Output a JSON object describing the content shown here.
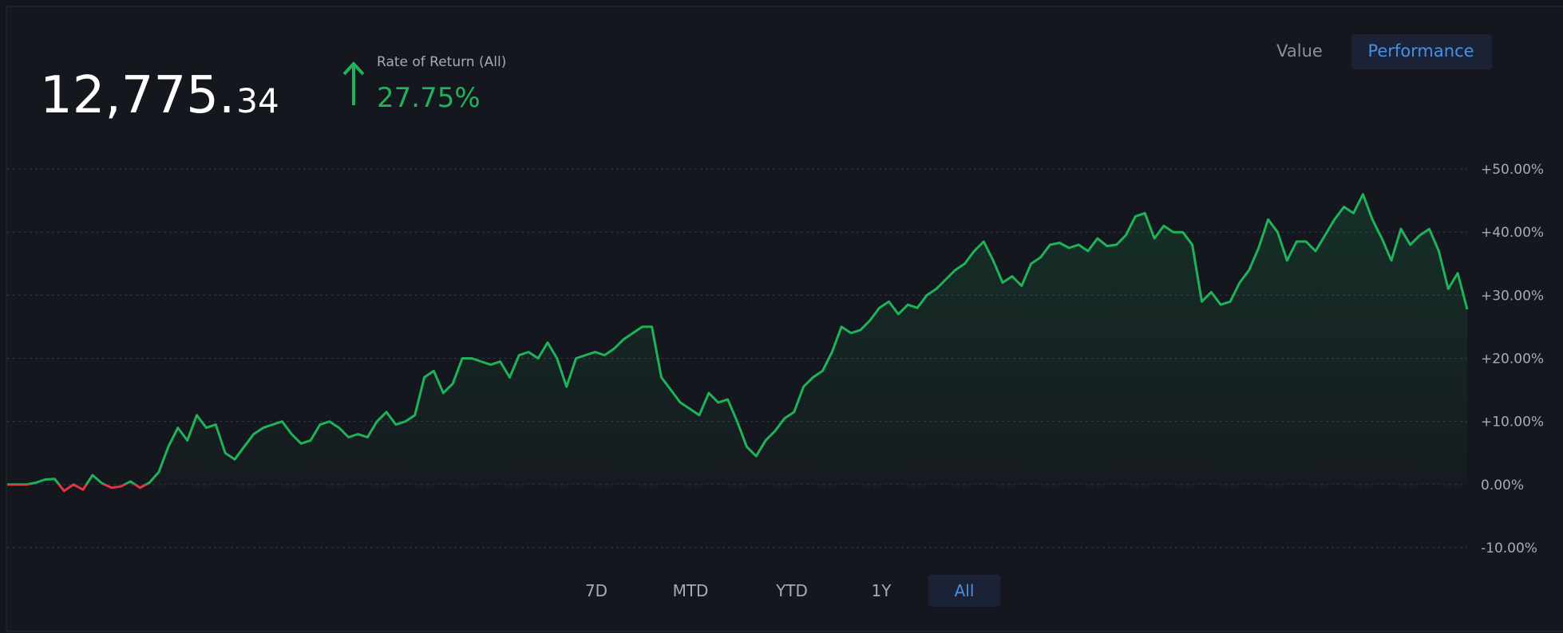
{
  "header": {
    "balance_main": "12,775.",
    "balance_decimals": "34",
    "return_label": "Rate of Return (All)",
    "return_value": "27.75%"
  },
  "view_tabs": [
    "Value",
    "Performance"
  ],
  "active_view": 1,
  "ranges": [
    "7D",
    "MTD",
    "YTD",
    "1Y",
    "All"
  ],
  "active_range": 4,
  "chart_data": {
    "type": "line",
    "color": "#1fb25a",
    "negative_color": "#e0383e",
    "grid": true,
    "area": true,
    "ylim": [
      -10,
      50
    ],
    "yticks": [
      {
        "value": -10,
        "label": "-10.00%"
      },
      {
        "value": 0,
        "label": "0.00%"
      },
      {
        "value": 10,
        "label": "+10.00%"
      },
      {
        "value": 20,
        "label": "+20.00%"
      },
      {
        "value": 30,
        "label": "+30.00%"
      },
      {
        "value": 40,
        "label": "+40.00%"
      },
      {
        "value": 50,
        "label": "+50.00%"
      }
    ],
    "values": [
      0,
      0,
      0,
      0.3,
      0.8,
      0.9,
      -1,
      0,
      -0.8,
      1.5,
      0.2,
      -0.5,
      -0.3,
      0.5,
      -0.5,
      0.3,
      2,
      6,
      9,
      7,
      11,
      9,
      9.5,
      5,
      4,
      6,
      8,
      9,
      9.5,
      10,
      8,
      6.5,
      7,
      9.5,
      10,
      9,
      7.5,
      8,
      7.5,
      10,
      11.5,
      9.5,
      10,
      11,
      17,
      18,
      14.5,
      16,
      20,
      20,
      19.5,
      19,
      19.5,
      17,
      20.5,
      21,
      20,
      22.5,
      20,
      15.5,
      20,
      20.5,
      21,
      20.5,
      21.5,
      23,
      24,
      25,
      25,
      17,
      15,
      13,
      12,
      11,
      14.5,
      13,
      13.5,
      10,
      6,
      4.5,
      7,
      8.5,
      10.5,
      11.5,
      15.5,
      17,
      18,
      21,
      25,
      24,
      24.5,
      26,
      28,
      29,
      27,
      28.5,
      28,
      30,
      31,
      32.5,
      34,
      35,
      37,
      38.5,
      35.5,
      32,
      33,
      31.5,
      35,
      36,
      38,
      38.3,
      37.5,
      38,
      37,
      39,
      37.8,
      38,
      39.5,
      42.5,
      43,
      39,
      41,
      40,
      40,
      38,
      29,
      30.5,
      28.5,
      29,
      32,
      34,
      37.5,
      42,
      40,
      35.5,
      38.5,
      38.5,
      37,
      39.5,
      42,
      44,
      43,
      46,
      42,
      39,
      35.5,
      40.5,
      38,
      39.5,
      40.5,
      37,
      31,
      33.5,
      27.75
    ]
  }
}
